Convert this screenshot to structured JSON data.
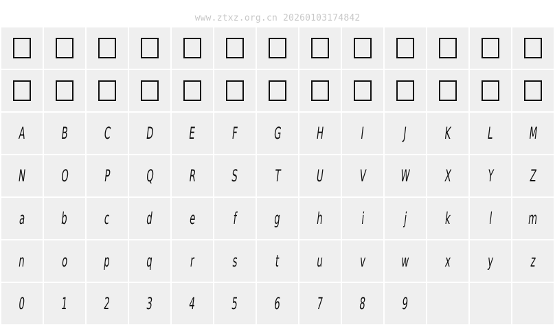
{
  "header": {
    "watermark": "www.ztxz.org.cn 20260103174842"
  },
  "grid": {
    "missing_glyph_rows": 2,
    "missing_glyph_columns": 13,
    "glyphs": [
      "A",
      "B",
      "C",
      "D",
      "E",
      "F",
      "G",
      "H",
      "I",
      "J",
      "K",
      "L",
      "M",
      "N",
      "O",
      "P",
      "Q",
      "R",
      "S",
      "T",
      "U",
      "V",
      "W",
      "X",
      "Y",
      "Z",
      "a",
      "b",
      "c",
      "d",
      "e",
      "f",
      "g",
      "h",
      "i",
      "j",
      "k",
      "l",
      "m",
      "n",
      "o",
      "p",
      "q",
      "r",
      "s",
      "t",
      "u",
      "v",
      "w",
      "x",
      "y",
      "z",
      "0",
      "1",
      "2",
      "3",
      "4",
      "5",
      "6",
      "7",
      "8",
      "9"
    ],
    "empty_cells": 3
  }
}
